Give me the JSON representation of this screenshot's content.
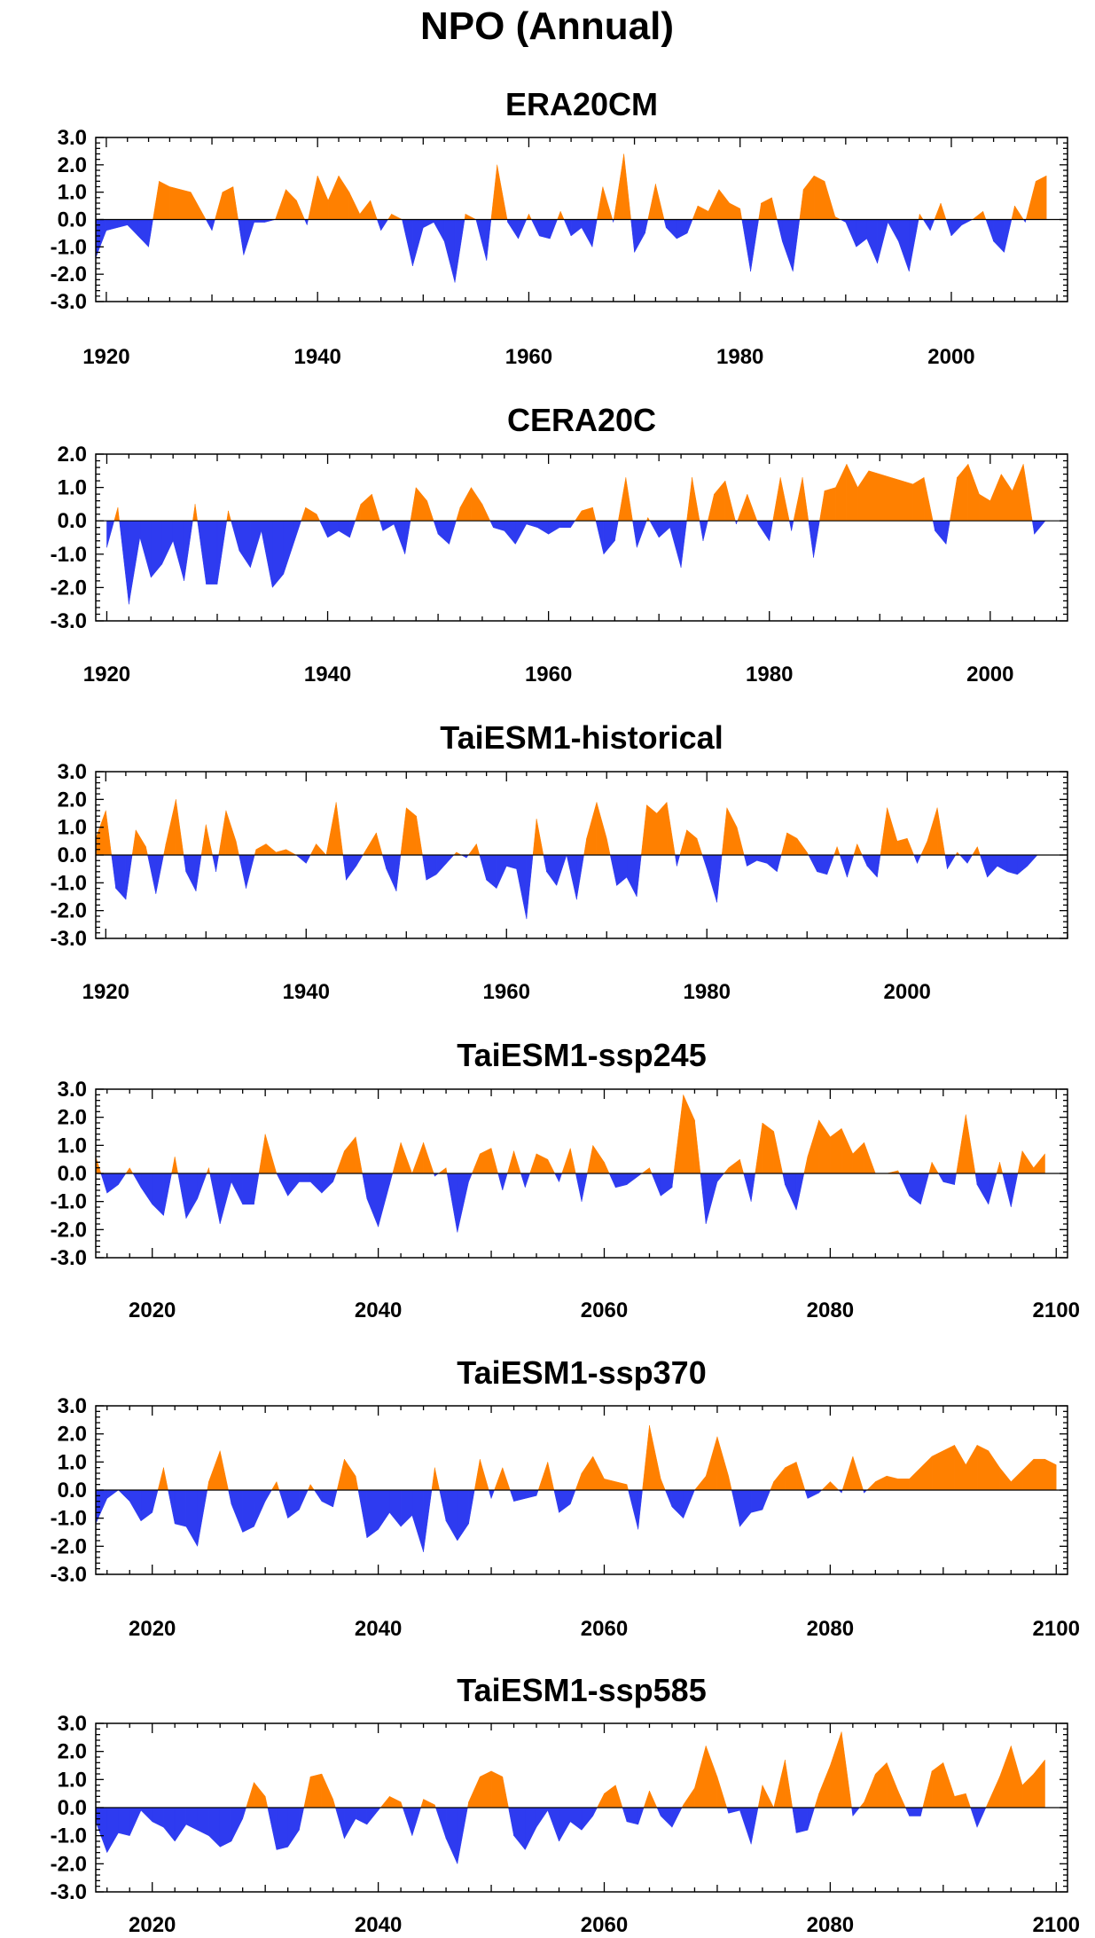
{
  "title": "NPO (Annual)",
  "colors": {
    "positive": "#FF8000",
    "negative": "#2E3BF0",
    "frame": "#000000"
  },
  "chart_data": [
    {
      "type": "area",
      "title": "ERA20CM",
      "xlim": [
        1919,
        2011
      ],
      "ylim": [
        -3,
        3
      ],
      "yticks": [
        "3.0",
        "2.0",
        "1.0",
        "0.0",
        "-1.0",
        "-2.0",
        "-3.0"
      ],
      "xticks": [
        "1920",
        "1940",
        "1960",
        "1980",
        "2000"
      ],
      "x_start": 1919,
      "values": [
        -1.4,
        -0.4,
        -0.3,
        -0.2,
        -0.6,
        -1.0,
        1.4,
        1.2,
        1.1,
        1.0,
        0.3,
        -0.4,
        1.0,
        1.2,
        -1.3,
        -0.1,
        -0.1,
        0.0,
        1.1,
        0.7,
        -0.2,
        1.6,
        0.7,
        1.6,
        1.0,
        0.2,
        0.7,
        -0.4,
        0.2,
        0.0,
        -1.7,
        -0.3,
        -0.1,
        -0.8,
        -2.3,
        0.2,
        0.0,
        -1.5,
        2.0,
        -0.1,
        -0.7,
        0.2,
        -0.6,
        -0.7,
        0.3,
        -0.6,
        -0.3,
        -1.0,
        1.2,
        -0.1,
        2.4,
        -1.2,
        -0.5,
        1.3,
        -0.3,
        -0.7,
        -0.5,
        0.5,
        0.3,
        1.1,
        0.6,
        0.4,
        -1.9,
        0.6,
        0.8,
        -0.8,
        -1.9,
        1.1,
        1.6,
        1.4,
        0.1,
        -0.1,
        -1.0,
        -0.7,
        -1.6,
        -0.1,
        -0.8,
        -1.9,
        0.2,
        -0.4,
        0.6,
        -0.6,
        -0.2,
        0.0,
        0.3,
        -0.8,
        -1.2,
        0.5,
        -0.1,
        1.4,
        1.6
      ]
    },
    {
      "type": "area",
      "title": "CERA20C",
      "xlim": [
        1919,
        2007
      ],
      "ylim": [
        -3,
        2
      ],
      "yticks": [
        "2.0",
        "1.0",
        "0.0",
        "-1.0",
        "-2.0",
        "-3.0"
      ],
      "xticks": [
        "1920",
        "1940",
        "1960",
        "1980",
        "2000"
      ],
      "x_start": 1920,
      "values": [
        -0.8,
        0.4,
        -2.5,
        -0.5,
        -1.7,
        -1.3,
        -0.6,
        -1.8,
        0.5,
        -1.9,
        -1.9,
        0.3,
        -0.9,
        -1.4,
        -0.3,
        -2.0,
        -1.6,
        -0.6,
        0.4,
        0.2,
        -0.5,
        -0.3,
        -0.5,
        0.5,
        0.8,
        -0.3,
        -0.1,
        -1.0,
        1.0,
        0.6,
        -0.4,
        -0.7,
        0.4,
        1.0,
        0.5,
        -0.2,
        -0.3,
        -0.7,
        -0.1,
        -0.2,
        -0.4,
        -0.2,
        -0.2,
        0.3,
        0.4,
        -1.0,
        -0.6,
        1.3,
        -0.8,
        0.1,
        -0.5,
        -0.2,
        -1.4,
        1.3,
        -0.6,
        0.8,
        1.2,
        -0.1,
        0.8,
        -0.1,
        -0.6,
        1.3,
        -0.3,
        1.3,
        -1.1,
        0.9,
        1.0,
        1.7,
        1.0,
        1.5,
        1.4,
        1.3,
        1.2,
        1.1,
        1.3,
        -0.3,
        -0.7,
        1.3,
        1.7,
        0.8,
        0.6,
        1.4,
        0.9,
        1.7,
        -0.4,
        0.0
      ]
    },
    {
      "type": "area",
      "title": "TaiESM1-historical",
      "xlim": [
        1919,
        2016
      ],
      "ylim": [
        -3,
        3
      ],
      "yticks": [
        "3.0",
        "2.0",
        "1.0",
        "0.0",
        "-1.0",
        "-2.0",
        "-3.0"
      ],
      "xticks": [
        "1920",
        "1940",
        "1960",
        "1980",
        "2000"
      ],
      "x_start": 1919,
      "values": [
        0.6,
        1.6,
        -1.2,
        -1.6,
        0.9,
        0.3,
        -1.4,
        0.4,
        2.0,
        -0.6,
        -1.3,
        1.1,
        -0.6,
        1.6,
        0.5,
        -1.2,
        0.2,
        0.4,
        0.1,
        0.2,
        0.0,
        -0.3,
        0.4,
        0.0,
        1.9,
        -0.9,
        -0.4,
        0.2,
        0.8,
        -0.5,
        -1.3,
        1.7,
        1.4,
        -0.9,
        -0.7,
        -0.3,
        0.1,
        -0.1,
        0.4,
        -0.9,
        -1.2,
        -0.4,
        -0.5,
        -2.3,
        1.3,
        -0.6,
        -1.1,
        0.0,
        -1.6,
        0.6,
        1.9,
        0.6,
        -1.1,
        -0.8,
        -1.5,
        1.8,
        1.5,
        1.9,
        -0.4,
        0.9,
        0.6,
        -0.5,
        -1.7,
        1.7,
        1.0,
        -0.4,
        -0.2,
        -0.3,
        -0.6,
        0.8,
        0.6,
        0.1,
        -0.6,
        -0.7,
        0.3,
        -0.8,
        0.4,
        -0.4,
        -0.8,
        1.7,
        0.5,
        0.6,
        -0.3,
        0.5,
        1.7,
        -0.5,
        0.1,
        -0.3,
        0.3,
        -0.8,
        -0.4,
        -0.6,
        -0.7,
        -0.4,
        0.0
      ]
    },
    {
      "type": "area",
      "title": "TaiESM1-ssp245",
      "xlim": [
        2015,
        2101
      ],
      "ylim": [
        -3,
        3
      ],
      "yticks": [
        "3.0",
        "2.0",
        "1.0",
        "0.0",
        "-1.0",
        "-2.0",
        "-3.0"
      ],
      "xticks": [
        "2020",
        "2040",
        "2060",
        "2080",
        "2100"
      ],
      "x_start": 2015,
      "values": [
        0.6,
        -0.7,
        -0.4,
        0.2,
        -0.5,
        -1.1,
        -1.5,
        0.6,
        -1.6,
        -0.9,
        0.2,
        -1.8,
        -0.3,
        -1.1,
        -1.1,
        1.4,
        0.0,
        -0.8,
        -0.3,
        -0.3,
        -0.7,
        -0.3,
        0.8,
        1.3,
        -0.9,
        -1.9,
        -0.4,
        1.1,
        0.0,
        1.1,
        -0.1,
        0.2,
        -2.1,
        -0.3,
        0.7,
        0.9,
        -0.6,
        0.8,
        -0.5,
        0.7,
        0.5,
        -0.3,
        0.9,
        -1.0,
        1.0,
        0.4,
        -0.5,
        -0.4,
        -0.1,
        0.2,
        -0.8,
        -0.5,
        2.8,
        1.9,
        -1.8,
        -0.3,
        0.2,
        0.5,
        -1.0,
        1.8,
        1.5,
        -0.4,
        -1.3,
        0.6,
        1.9,
        1.3,
        1.6,
        0.7,
        1.1,
        0.0,
        0.0,
        0.1,
        -0.8,
        -1.1,
        0.4,
        -0.3,
        -0.4,
        2.1,
        -0.4,
        -1.1,
        0.4,
        -1.2,
        0.8,
        0.2,
        0.7
      ]
    },
    {
      "type": "area",
      "title": "TaiESM1-ssp370",
      "xlim": [
        2015,
        2101
      ],
      "ylim": [
        -3,
        3
      ],
      "yticks": [
        "3.0",
        "2.0",
        "1.0",
        "0.0",
        "-1.0",
        "-2.0",
        "-3.0"
      ],
      "xticks": [
        "2020",
        "2040",
        "2060",
        "2080",
        "2100"
      ],
      "x_start": 2015,
      "values": [
        -1.2,
        -0.3,
        0.0,
        -0.4,
        -1.1,
        -0.8,
        0.8,
        -1.2,
        -1.3,
        -2.0,
        0.3,
        1.4,
        -0.5,
        -1.5,
        -1.3,
        -0.4,
        0.3,
        -1.0,
        -0.7,
        0.2,
        -0.4,
        -0.6,
        1.1,
        0.5,
        -1.7,
        -1.4,
        -0.8,
        -1.3,
        -0.9,
        -2.2,
        0.8,
        -1.1,
        -1.8,
        -1.2,
        1.1,
        -0.3,
        0.8,
        -0.4,
        -0.3,
        -0.2,
        1.0,
        -0.8,
        -0.5,
        0.6,
        1.2,
        0.4,
        0.3,
        0.2,
        -1.4,
        2.3,
        0.4,
        -0.6,
        -1.0,
        0.0,
        0.5,
        1.9,
        0.5,
        -1.3,
        -0.8,
        -0.7,
        0.3,
        0.8,
        1.0,
        -0.3,
        -0.1,
        0.3,
        -0.1,
        1.2,
        -0.1,
        0.3,
        0.5,
        0.4,
        0.4,
        0.8,
        1.2,
        1.4,
        1.6,
        0.9,
        1.6,
        1.4,
        0.8,
        0.3,
        0.7,
        1.1,
        1.1,
        0.9
      ]
    },
    {
      "type": "area",
      "title": "TaiESM1-ssp585",
      "xlim": [
        2015,
        2101
      ],
      "ylim": [
        -3,
        3
      ],
      "yticks": [
        "3.0",
        "2.0",
        "1.0",
        "0.0",
        "-1.0",
        "-2.0",
        "-3.0"
      ],
      "xticks": [
        "2020",
        "2040",
        "2060",
        "2080",
        "2100"
      ],
      "x_start": 2015,
      "values": [
        -0.5,
        -1.6,
        -0.9,
        -1.0,
        -0.1,
        -0.5,
        -0.7,
        -1.2,
        -0.6,
        -0.8,
        -1.0,
        -1.4,
        -1.2,
        -0.4,
        0.9,
        0.4,
        -1.5,
        -1.4,
        -0.8,
        1.1,
        1.2,
        0.3,
        -1.1,
        -0.4,
        -0.6,
        -0.1,
        0.4,
        0.2,
        -1.0,
        0.3,
        0.1,
        -1.1,
        -2.0,
        0.2,
        1.1,
        1.3,
        1.1,
        -1.0,
        -1.5,
        -0.7,
        -0.1,
        -1.2,
        -0.5,
        -0.8,
        -0.3,
        0.5,
        0.8,
        -0.5,
        -0.6,
        0.6,
        -0.3,
        -0.7,
        0.1,
        0.7,
        2.2,
        1.1,
        -0.2,
        -0.1,
        -1.3,
        0.8,
        0.0,
        1.7,
        -0.9,
        -0.8,
        0.5,
        1.5,
        2.7,
        -0.3,
        0.2,
        1.2,
        1.6,
        0.6,
        -0.3,
        -0.3,
        1.3,
        1.6,
        0.4,
        0.5,
        -0.7,
        0.2,
        1.1,
        2.2,
        0.8,
        1.2,
        1.7
      ]
    }
  ]
}
